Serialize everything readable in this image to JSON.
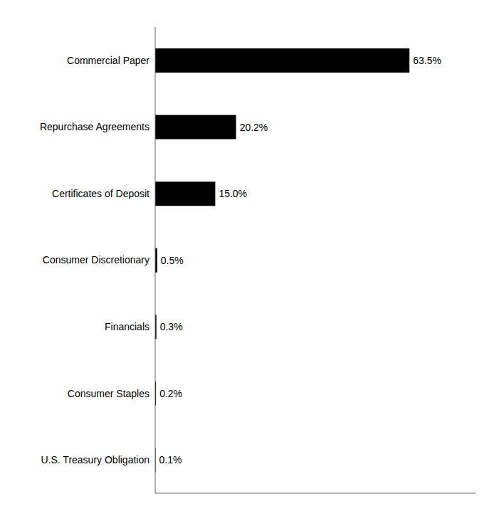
{
  "chart_data": {
    "type": "bar",
    "orientation": "horizontal",
    "categories": [
      "Commercial Paper",
      "Repurchase Agreements",
      "Certificates of Deposit",
      "Consumer Discretionary",
      "Financials",
      "Consumer Staples",
      "U.S. Treasury Obligation"
    ],
    "values": [
      63.5,
      20.2,
      15.0,
      0.5,
      0.3,
      0.2,
      0.1
    ],
    "value_labels": [
      "63.5%",
      "20.2%",
      "15.0%",
      "0.5%",
      "0.3%",
      "0.2%",
      "0.1%"
    ],
    "color": "#000000",
    "xlim": [
      0,
      80
    ],
    "data_labels": true,
    "tick_labels": "y",
    "grid": false
  }
}
